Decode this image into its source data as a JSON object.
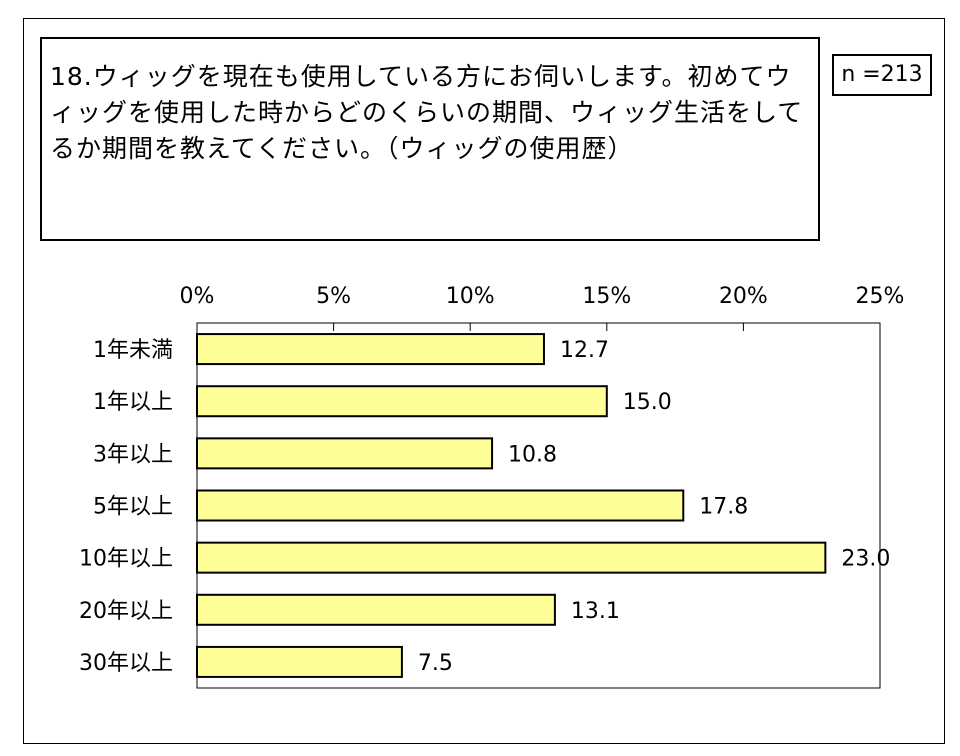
{
  "question": {
    "text": "18.ウィッグを現在も使用している方にお伺いします。初めてウィッグを使用した時からどのくらいの期間、ウィッグ生活をしてるか期間を教えてください。（ウィッグの使用歴）"
  },
  "sample_size": "n =213",
  "chart_data": {
    "type": "bar",
    "orientation": "horizontal",
    "categories": [
      "1年未満",
      "1年以上",
      "3年以上",
      "5年以上",
      "10年以上",
      "20年以上",
      "30年以上"
    ],
    "values": [
      12.7,
      15.0,
      10.8,
      17.8,
      23.0,
      13.1,
      7.5
    ],
    "value_labels": [
      "12.7",
      "15.0",
      "10.8",
      "17.8",
      "23.0",
      "13.1",
      "7.5"
    ],
    "xlim": [
      0,
      25
    ],
    "x_ticks": [
      0,
      5,
      10,
      15,
      20,
      25
    ],
    "x_tick_labels": [
      "0%",
      "5%",
      "10%",
      "15%",
      "20%",
      "25%"
    ],
    "bar_color": "#ffff99",
    "bar_edge_color": "#000000",
    "grid": false,
    "legend": "none"
  }
}
